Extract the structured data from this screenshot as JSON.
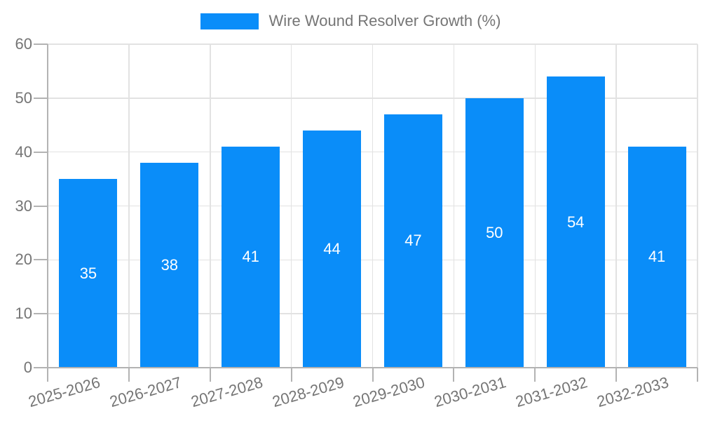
{
  "legend": {
    "label": "Wire Wound Resolver Growth (%)"
  },
  "colors": {
    "bar": "#0a8df9",
    "grid": "#e2e2e2",
    "axis": "#b3b3b3",
    "tick_label": "#757575",
    "value_label": "#ffffff",
    "background": "#ffffff"
  },
  "chart_data": {
    "type": "bar",
    "title": "Wire Wound Resolver Growth (%)",
    "categories": [
      "2025-2026",
      "2026-2027",
      "2027-2028",
      "2028-2029",
      "2029-2030",
      "2030-2031",
      "2031-2032",
      "2032-2033"
    ],
    "values": [
      35,
      38,
      41,
      44,
      47,
      50,
      54,
      41
    ],
    "xlabel": "",
    "ylabel": "",
    "ylim": [
      0,
      60
    ],
    "yticks": [
      0,
      10,
      20,
      30,
      40,
      50,
      60
    ],
    "grid": true,
    "legend_position": "top-center",
    "value_label_position": "inside-middle"
  }
}
